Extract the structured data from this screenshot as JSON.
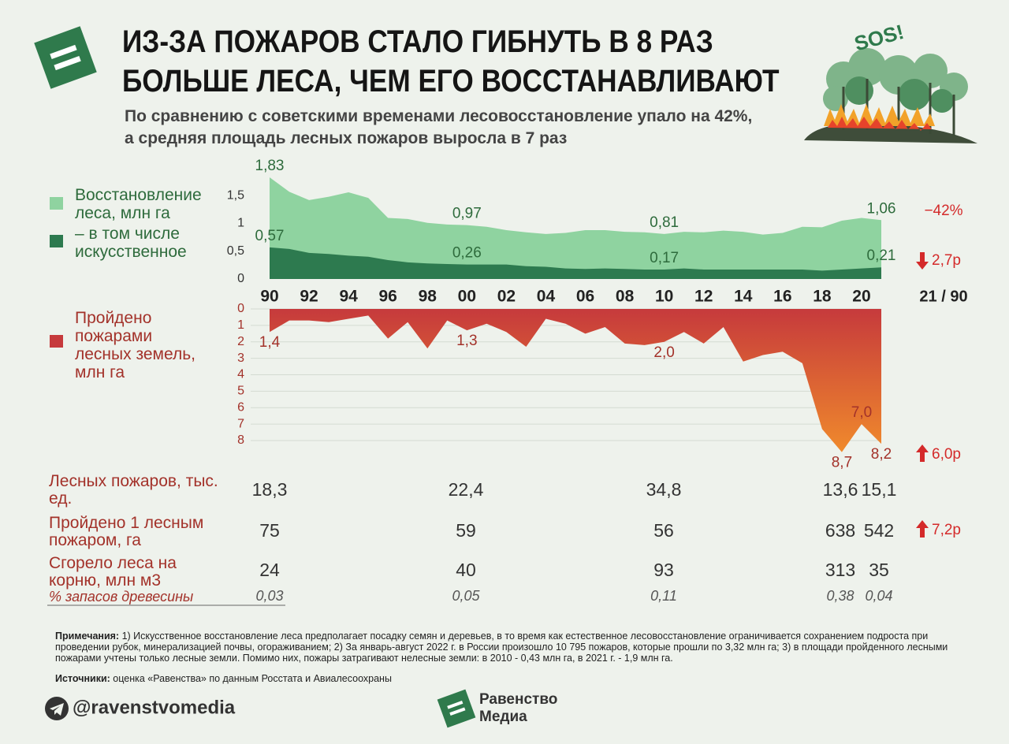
{
  "header": {
    "title_lines": [
      "ИЗ-ЗА ПОЖАРОВ СТАЛО ГИБНУТЬ В 8 РАЗ",
      "БОЛЬШЕ ЛЕСА, ЧЕМ ЕГО ВОССТАНАВЛИВАЮТ"
    ],
    "subtitle_lines": [
      "По сравнению с советскими временами лесовосстановление упало на 42%,",
      "а средняя площадь лесных пожаров выросла в 7 раз"
    ],
    "sos": "SOS!"
  },
  "chart_data": [
    {
      "type": "area",
      "x": [
        1990,
        1991,
        1992,
        1993,
        1994,
        1995,
        1996,
        1997,
        1998,
        1999,
        2000,
        2001,
        2002,
        2003,
        2004,
        2005,
        2006,
        2007,
        2008,
        2009,
        2010,
        2011,
        2012,
        2013,
        2014,
        2015,
        2016,
        2017,
        2018,
        2019,
        2020,
        2021
      ],
      "xlim": [
        1990,
        2021
      ],
      "xticks": [
        {
          "value": 1990,
          "label": "90"
        },
        {
          "value": 1992,
          "label": "92"
        },
        {
          "value": 1994,
          "label": "94"
        },
        {
          "value": 1996,
          "label": "96"
        },
        {
          "value": 1998,
          "label": "98"
        },
        {
          "value": 2000,
          "label": "00"
        },
        {
          "value": 2002,
          "label": "02"
        },
        {
          "value": 2004,
          "label": "04"
        },
        {
          "value": 2006,
          "label": "06"
        },
        {
          "value": 2008,
          "label": "08"
        },
        {
          "value": 2010,
          "label": "10"
        },
        {
          "value": 2012,
          "label": "12"
        },
        {
          "value": 2014,
          "label": "14"
        },
        {
          "value": 2016,
          "label": "16"
        },
        {
          "value": 2018,
          "label": "18"
        },
        {
          "value": 2020,
          "label": "20"
        }
      ],
      "ylim": [
        0,
        2
      ],
      "yticks": [
        0,
        {
          "value": 0.5,
          "label": "0,5"
        },
        1,
        {
          "value": 1.5,
          "label": "1,5"
        }
      ],
      "grid": false,
      "series": [
        {
          "name": "Восстановление леса, млн га",
          "color": "#8fd3a0",
          "values": [
            1.83,
            1.57,
            1.42,
            1.48,
            1.56,
            1.46,
            1.1,
            1.08,
            1.01,
            0.98,
            0.97,
            0.94,
            0.88,
            0.84,
            0.81,
            0.83,
            0.88,
            0.88,
            0.85,
            0.84,
            0.81,
            0.85,
            0.84,
            0.87,
            0.85,
            0.8,
            0.83,
            0.94,
            0.93,
            1.05,
            1.1,
            1.06
          ],
          "value_labels": [
            "1,83",
            null,
            null,
            null,
            null,
            null,
            null,
            null,
            null,
            null,
            "0,97",
            null,
            null,
            null,
            null,
            null,
            null,
            null,
            null,
            null,
            "0,81",
            null,
            null,
            null,
            null,
            null,
            null,
            null,
            null,
            null,
            null,
            "1,06"
          ]
        },
        {
          "name": "– в том числе искусственное",
          "color": "#2d7a4f",
          "values": [
            0.57,
            0.54,
            0.47,
            0.45,
            0.42,
            0.4,
            0.34,
            0.3,
            0.28,
            0.27,
            0.26,
            0.26,
            0.26,
            0.23,
            0.22,
            0.19,
            0.18,
            0.19,
            0.18,
            0.17,
            0.17,
            0.19,
            0.17,
            0.17,
            0.17,
            0.17,
            0.17,
            0.17,
            0.15,
            0.17,
            0.19,
            0.21
          ],
          "value_labels": [
            "0,57",
            null,
            null,
            null,
            null,
            null,
            null,
            null,
            null,
            null,
            "0,26",
            null,
            null,
            null,
            null,
            null,
            null,
            null,
            null,
            null,
            "0,17",
            null,
            null,
            null,
            null,
            null,
            null,
            null,
            null,
            null,
            null,
            "0,21"
          ]
        }
      ]
    },
    {
      "type": "area",
      "x": [
        1990,
        1991,
        1992,
        1993,
        1994,
        1995,
        1996,
        1997,
        1998,
        1999,
        2000,
        2001,
        2002,
        2003,
        2004,
        2005,
        2006,
        2007,
        2008,
        2009,
        2010,
        2011,
        2012,
        2013,
        2014,
        2015,
        2016,
        2017,
        2018,
        2019,
        2020,
        2021
      ],
      "xlim": [
        1990,
        2021
      ],
      "ylim": [
        0,
        8
      ],
      "inverted": true,
      "yticks": [
        0,
        1,
        2,
        3,
        4,
        5,
        6,
        7,
        8
      ],
      "grid": true,
      "series": [
        {
          "name": "Пройдено пожарами лесных земель, млн га",
          "color": "#c63a3c",
          "color_end": "#f08a2c",
          "values": [
            1.4,
            0.7,
            0.7,
            0.8,
            0.6,
            0.4,
            1.8,
            0.8,
            2.4,
            0.7,
            1.3,
            0.9,
            1.4,
            2.3,
            0.6,
            0.9,
            1.5,
            1.1,
            2.1,
            2.2,
            2.0,
            1.4,
            2.1,
            1.1,
            3.2,
            2.8,
            2.6,
            3.3,
            7.3,
            8.7,
            7.0,
            8.2
          ],
          "value_labels": [
            "1,4",
            null,
            null,
            null,
            null,
            null,
            null,
            null,
            null,
            null,
            "1,3",
            null,
            null,
            null,
            null,
            null,
            null,
            null,
            null,
            null,
            "2,0",
            null,
            null,
            null,
            null,
            null,
            null,
            null,
            null,
            "8,7",
            "7,0",
            "8,2"
          ]
        }
      ]
    }
  ],
  "comparison": {
    "restoration": "−42%",
    "artificial": "2,7р",
    "period": "21 / 90",
    "burned": "6,0р"
  },
  "table": {
    "rows": [
      {
        "label": "Лесных пожаров, тыс. ед.",
        "cells": [
          "18,3",
          "22,4",
          "34,8",
          "13,6",
          "15,1"
        ]
      },
      {
        "label": "Пройдено 1 лесным пожаром, га",
        "cells": [
          "75",
          "59",
          "56",
          "638",
          "542"
        ],
        "change": "7,2р"
      },
      {
        "label": "Сгорело леса на корню, млн м3",
        "cells": [
          "24",
          "40",
          "93",
          "313",
          "35"
        ],
        "sub_label": "% запасов древесины",
        "sub_cells": [
          "0,03",
          "0,05",
          "0,11",
          "0,38",
          "0,04"
        ]
      }
    ]
  },
  "notes": {
    "label": "Примечания:",
    "text": "1) Искусственное восстановление леса предполагает посадку семян и деревьев, в то время как естественное лесовосстановление ограничивается сохранением подроста при проведении рубок, минерализацией почвы, огораживанием; 2) За январь-август 2022 г. в России произошло 10 795 пожаров, которые прошли по 3,32 млн га; 3) в площади пройденного лесными пожарами учтены только лесные земли. Помимо них, пожары затрагивают нелесные земли: в 2010 - 0,43 млн га, в 2021 г. - 1,9 млн га."
  },
  "sources": {
    "label": "Источники:",
    "text": "оценка «Равенства» по данным Росстата и Авиалесоохраны"
  },
  "footer": {
    "handle": "@ravenstvomedia",
    "logo_lines": [
      "Равенство",
      "Медиа"
    ]
  }
}
